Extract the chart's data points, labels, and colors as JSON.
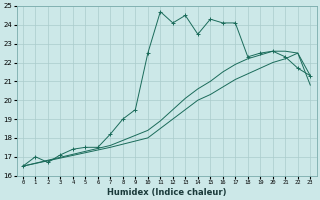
{
  "xlabel": "Humidex (Indice chaleur)",
  "xlim": [
    -0.5,
    23.5
  ],
  "ylim": [
    16,
    25
  ],
  "xticks": [
    0,
    1,
    2,
    3,
    4,
    5,
    6,
    7,
    8,
    9,
    10,
    11,
    12,
    13,
    14,
    15,
    16,
    17,
    18,
    19,
    20,
    21,
    22,
    23
  ],
  "yticks": [
    16,
    17,
    18,
    19,
    20,
    21,
    22,
    23,
    24,
    25
  ],
  "bg_color": "#cce8e8",
  "grid_color": "#aacccc",
  "line_color": "#1a6b5a",
  "line1_x": [
    0,
    1,
    2,
    3,
    4,
    5,
    6,
    7,
    8,
    9,
    10,
    11,
    12,
    13,
    14,
    15,
    16,
    17,
    18,
    19,
    20,
    21,
    22,
    23
  ],
  "line1_y": [
    16.5,
    17.0,
    16.7,
    17.1,
    17.4,
    17.5,
    17.5,
    18.2,
    19.0,
    19.5,
    22.5,
    24.7,
    24.1,
    24.5,
    23.5,
    24.3,
    24.1,
    24.1,
    22.3,
    22.5,
    22.6,
    22.3,
    21.7,
    21.3
  ],
  "line2_x": [
    0,
    7,
    10,
    11,
    12,
    13,
    14,
    15,
    16,
    17,
    18,
    19,
    20,
    21,
    22,
    23
  ],
  "line2_y": [
    16.5,
    17.6,
    18.4,
    18.9,
    19.5,
    20.1,
    20.6,
    21.0,
    21.5,
    21.9,
    22.2,
    22.4,
    22.6,
    22.6,
    22.5,
    21.3
  ],
  "line3_x": [
    0,
    7,
    10,
    11,
    12,
    13,
    14,
    15,
    16,
    17,
    18,
    19,
    20,
    21,
    22,
    23
  ],
  "line3_y": [
    16.5,
    17.5,
    18.0,
    18.5,
    19.0,
    19.5,
    20.0,
    20.3,
    20.7,
    21.1,
    21.4,
    21.7,
    22.0,
    22.2,
    22.5,
    20.8
  ]
}
